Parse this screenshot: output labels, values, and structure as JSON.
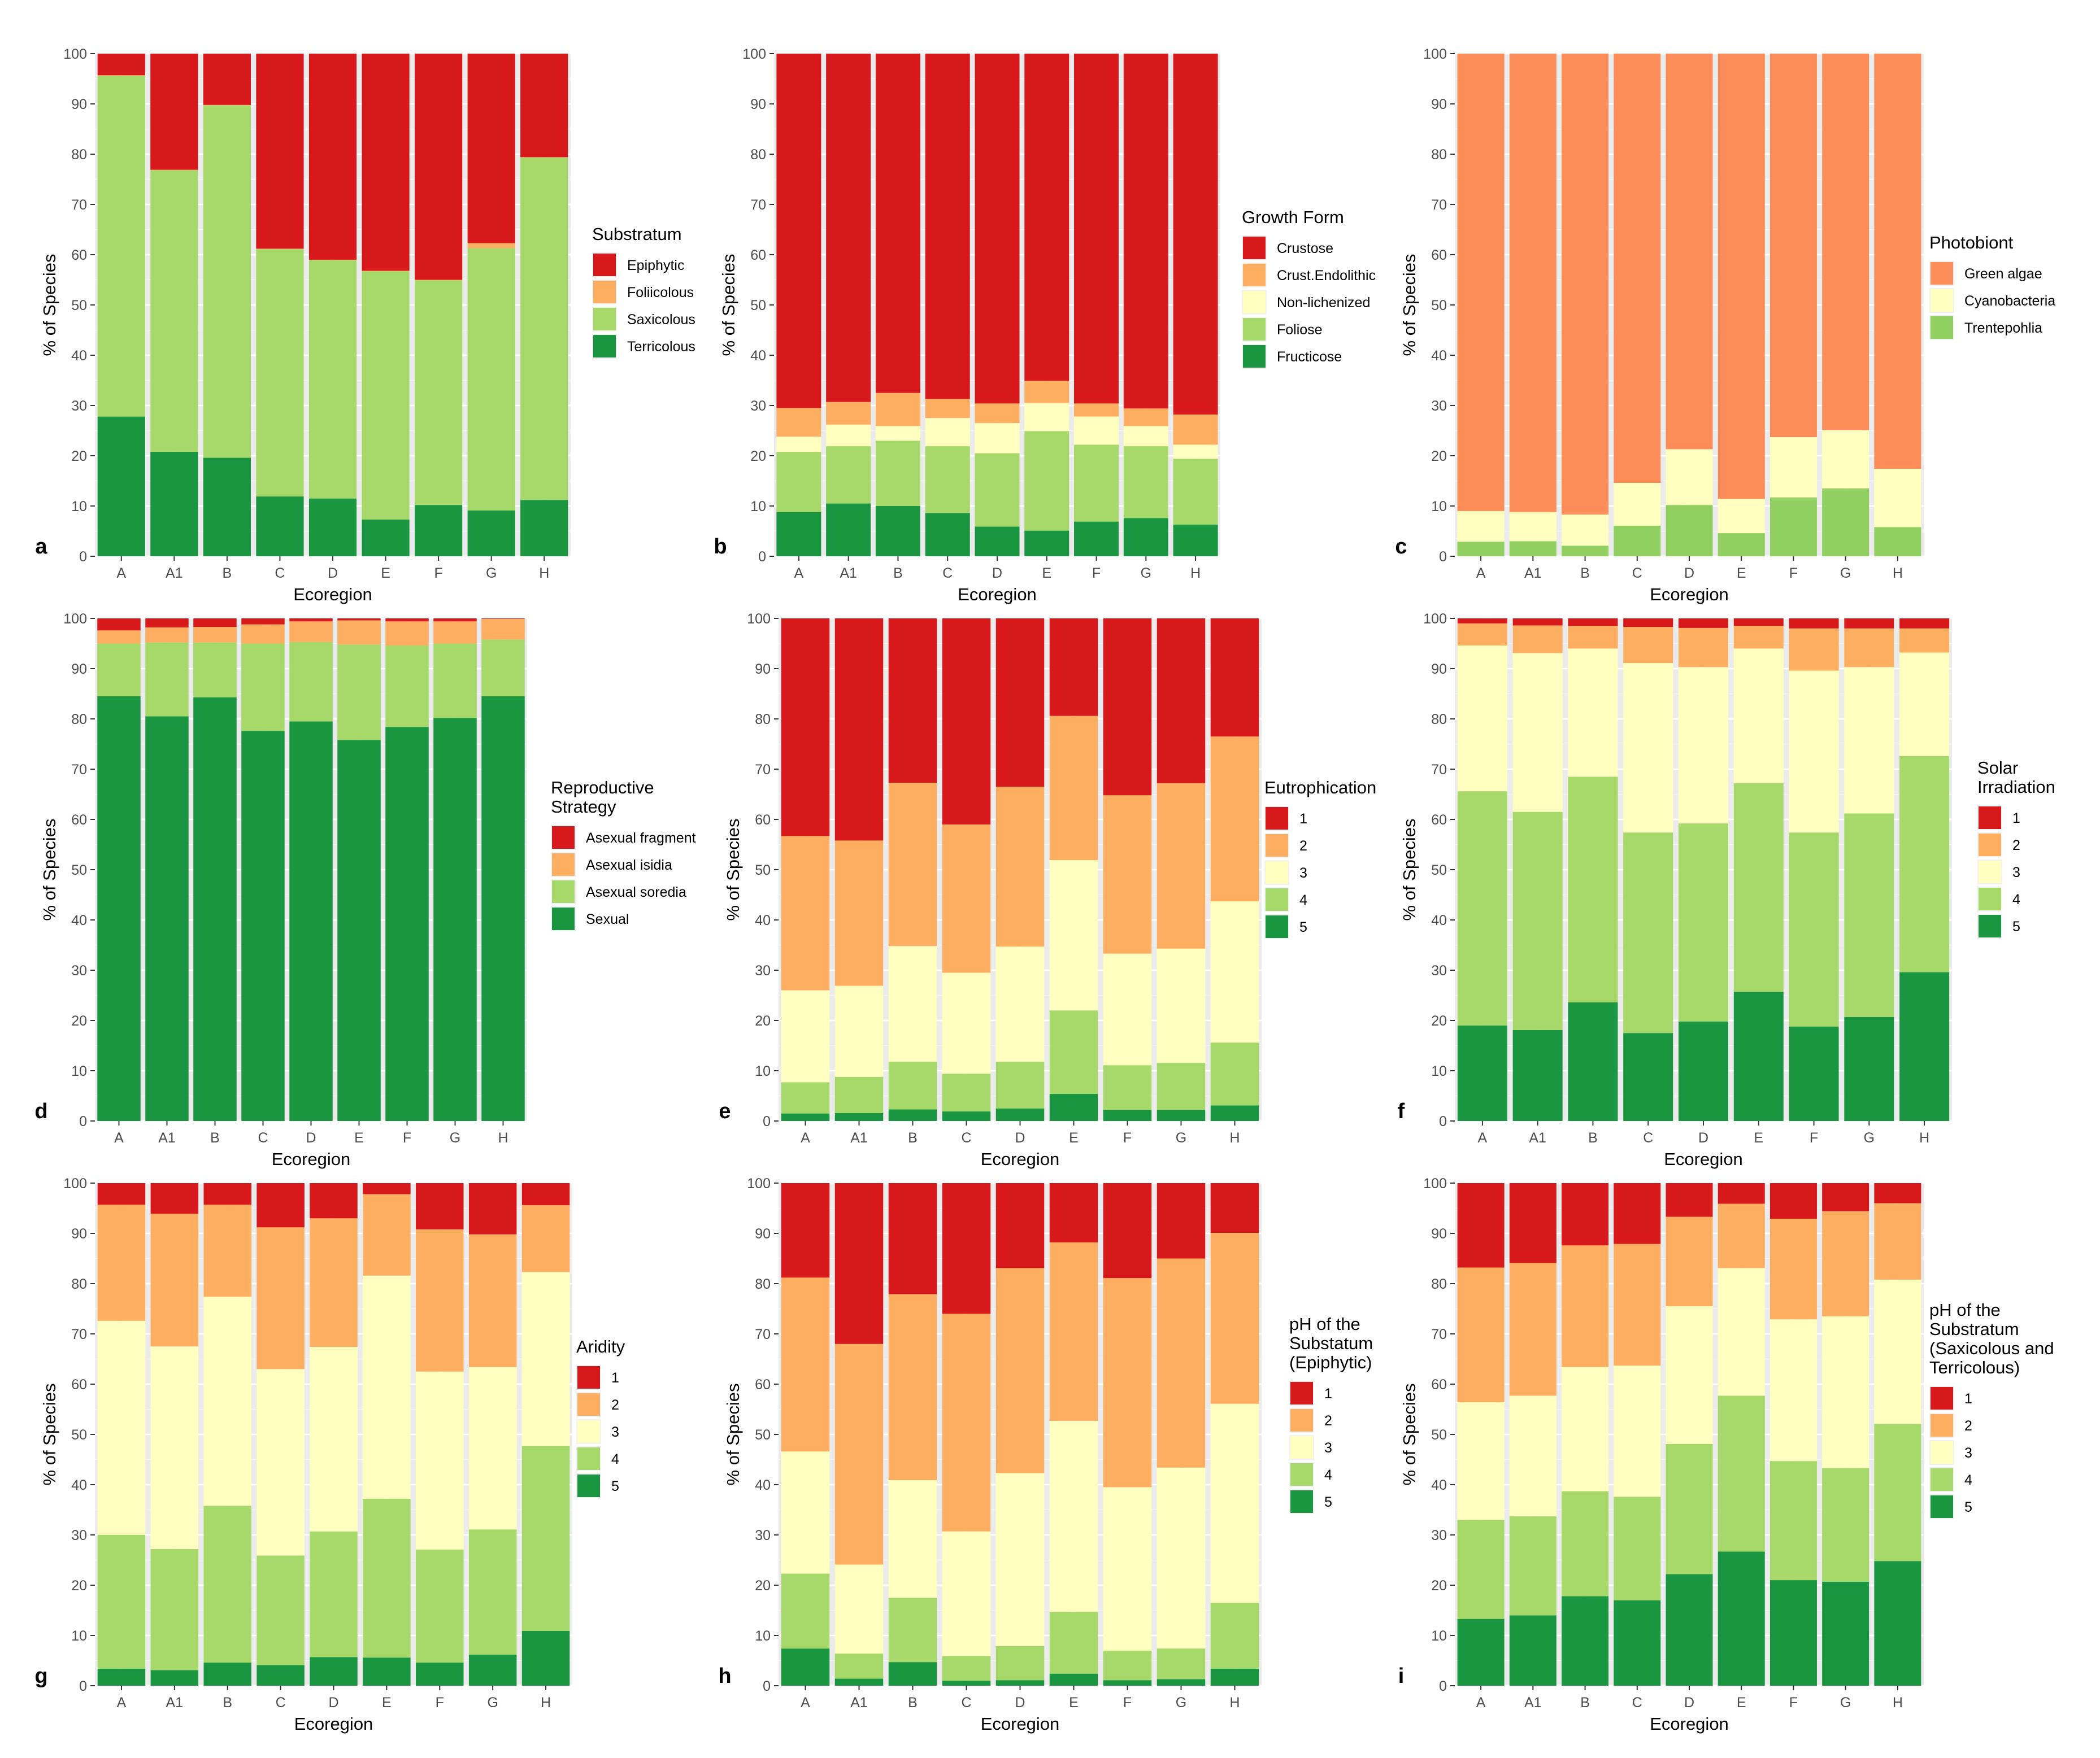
{
  "figure": {
    "categories": [
      "A",
      "A1",
      "B",
      "C",
      "D",
      "E",
      "F",
      "G",
      "H"
    ],
    "xlabel": "Ecoregion",
    "ylabel": "% of Species",
    "yticks": [
      0,
      10,
      20,
      30,
      40,
      50,
      60,
      70,
      80,
      90,
      100
    ],
    "ylim": [
      0,
      100
    ]
  },
  "chart_data": [
    {
      "panel": "a",
      "type": "bar",
      "stacked": true,
      "legend_title": "Substratum",
      "series": [
        {
          "name": "Epiphytic",
          "color": "#D7191C",
          "values": [
            4.3,
            23.1,
            10.2,
            38.8,
            41.0,
            43.2,
            45.0,
            37.7,
            20.6
          ]
        },
        {
          "name": "Foliicolous",
          "color": "#FDAE61",
          "values": [
            0.1,
            0.1,
            0.1,
            0.1,
            0.1,
            0.1,
            0.1,
            1.0,
            0.1
          ]
        },
        {
          "name": "Saxicolous",
          "color": "#A6D96A",
          "values": [
            67.8,
            56.0,
            70.1,
            49.2,
            47.4,
            49.4,
            44.7,
            52.2,
            68.1
          ]
        },
        {
          "name": "Terricolous",
          "color": "#1A9641",
          "values": [
            27.8,
            20.8,
            19.6,
            11.9,
            11.5,
            7.3,
            10.2,
            9.1,
            11.2
          ]
        }
      ]
    },
    {
      "panel": "b",
      "type": "bar",
      "stacked": true,
      "legend_title": "Growth Form",
      "series": [
        {
          "name": "Crustose",
          "color": "#D7191C",
          "values": [
            70.5,
            69.3,
            67.5,
            68.7,
            69.6,
            65.1,
            69.6,
            70.6,
            71.8
          ]
        },
        {
          "name": "Crust.Endolithic",
          "color": "#FDAE61",
          "values": [
            5.7,
            4.5,
            6.6,
            3.8,
            3.9,
            4.4,
            2.6,
            3.5,
            6.0
          ]
        },
        {
          "name": "Non-lichenized",
          "color": "#FFFFBF",
          "values": [
            3.0,
            4.3,
            2.9,
            5.6,
            6.0,
            5.6,
            5.6,
            4.0,
            2.8
          ]
        },
        {
          "name": "Foliose",
          "color": "#A6D96A",
          "values": [
            12.0,
            11.4,
            13.0,
            13.3,
            14.6,
            19.8,
            15.3,
            14.3,
            13.1
          ]
        },
        {
          "name": "Fructicose",
          "color": "#1A9641",
          "values": [
            8.8,
            10.5,
            10.0,
            8.6,
            5.9,
            5.1,
            6.9,
            7.6,
            6.3
          ]
        }
      ]
    },
    {
      "panel": "c",
      "type": "bar",
      "stacked": true,
      "legend_title": "Photobiont",
      "series": [
        {
          "name": "Green algae",
          "color": "#FC8D59",
          "values": [
            91.0,
            91.2,
            91.7,
            85.4,
            78.7,
            88.6,
            76.3,
            74.9,
            82.6
          ]
        },
        {
          "name": "Cyanobacteria",
          "color": "#FFFFBF",
          "values": [
            6.1,
            5.8,
            6.2,
            8.5,
            11.1,
            6.8,
            12.0,
            11.6,
            11.6
          ]
        },
        {
          "name": "Trentepohlia",
          "color": "#91CF60",
          "values": [
            2.9,
            3.0,
            2.1,
            6.1,
            10.2,
            4.6,
            11.7,
            13.5,
            5.8
          ]
        }
      ]
    },
    {
      "panel": "d",
      "type": "bar",
      "stacked": true,
      "legend_title": "Reproductive Strategy",
      "series": [
        {
          "name": "Asexual fragment",
          "color": "#D7191C",
          "values": [
            2.4,
            1.8,
            1.7,
            1.2,
            0.6,
            0.4,
            0.6,
            0.6,
            0.1
          ]
        },
        {
          "name": "Asexual isidia",
          "color": "#FDAE61",
          "values": [
            2.6,
            3.0,
            3.1,
            3.8,
            4.1,
            4.8,
            4.8,
            4.4,
            4.1
          ]
        },
        {
          "name": "Asexual soredia",
          "color": "#A6D96A",
          "values": [
            10.5,
            14.7,
            10.9,
            17.4,
            15.8,
            19.0,
            16.2,
            14.8,
            11.3
          ]
        },
        {
          "name": "Sexual",
          "color": "#1A9641",
          "values": [
            84.5,
            80.5,
            84.3,
            77.6,
            79.5,
            75.8,
            78.4,
            80.2,
            84.5
          ]
        }
      ]
    },
    {
      "panel": "e",
      "type": "bar",
      "stacked": true,
      "legend_title": "Eutrophication",
      "series": [
        {
          "name": "1",
          "color": "#D7191C",
          "values": [
            43.3,
            44.2,
            32.7,
            41.0,
            33.5,
            19.4,
            35.2,
            32.8,
            23.5
          ]
        },
        {
          "name": "2",
          "color": "#FDAE61",
          "values": [
            30.7,
            28.9,
            32.5,
            29.5,
            31.8,
            28.7,
            31.5,
            32.9,
            32.8
          ]
        },
        {
          "name": "3",
          "color": "#FFFFBF",
          "values": [
            18.3,
            18.1,
            23.0,
            20.1,
            22.9,
            29.9,
            22.2,
            22.7,
            28.1
          ]
        },
        {
          "name": "4",
          "color": "#A6D96A",
          "values": [
            6.2,
            7.2,
            9.5,
            7.5,
            9.3,
            16.6,
            8.9,
            9.4,
            12.5
          ]
        },
        {
          "name": "5",
          "color": "#1A9641",
          "values": [
            1.5,
            1.6,
            2.3,
            1.9,
            2.5,
            5.4,
            2.2,
            2.2,
            3.1
          ]
        }
      ]
    },
    {
      "panel": "f",
      "type": "bar",
      "stacked": true,
      "legend_title": "Solar Irradiation",
      "series": [
        {
          "name": "1",
          "color": "#D7191C",
          "values": [
            1.0,
            1.4,
            1.5,
            1.7,
            1.9,
            1.5,
            2.0,
            2.0,
            2.0
          ]
        },
        {
          "name": "2",
          "color": "#FDAE61",
          "values": [
            4.4,
            5.5,
            4.5,
            7.2,
            7.8,
            4.5,
            8.4,
            7.7,
            4.8
          ]
        },
        {
          "name": "3",
          "color": "#FFFFBF",
          "values": [
            29.0,
            31.6,
            25.5,
            33.7,
            31.1,
            26.8,
            32.2,
            29.1,
            20.6
          ]
        },
        {
          "name": "4",
          "color": "#A6D96A",
          "values": [
            46.6,
            43.4,
            44.9,
            39.9,
            39.4,
            41.5,
            38.6,
            40.5,
            43.0
          ]
        },
        {
          "name": "5",
          "color": "#1A9641",
          "values": [
            19.0,
            18.1,
            23.6,
            17.5,
            19.8,
            25.7,
            18.8,
            20.7,
            29.6
          ]
        }
      ]
    },
    {
      "panel": "g",
      "type": "bar",
      "stacked": true,
      "legend_title": "Aridity",
      "series": [
        {
          "name": "1",
          "color": "#D7191C",
          "values": [
            4.3,
            6.1,
            4.3,
            8.8,
            7.0,
            2.2,
            9.2,
            10.2,
            4.4
          ]
        },
        {
          "name": "2",
          "color": "#FDAE61",
          "values": [
            23.1,
            26.4,
            18.3,
            28.2,
            25.6,
            16.2,
            28.3,
            26.4,
            13.3
          ]
        },
        {
          "name": "3",
          "color": "#FFFFBF",
          "values": [
            42.6,
            40.3,
            41.6,
            37.1,
            36.7,
            44.4,
            35.4,
            32.3,
            34.6
          ]
        },
        {
          "name": "4",
          "color": "#A6D96A",
          "values": [
            26.6,
            24.1,
            31.2,
            21.8,
            25.0,
            31.6,
            22.5,
            24.9,
            36.8
          ]
        },
        {
          "name": "5",
          "color": "#1A9641",
          "values": [
            3.4,
            3.1,
            4.6,
            4.1,
            5.7,
            5.6,
            4.6,
            6.2,
            10.9
          ]
        }
      ]
    },
    {
      "panel": "h",
      "type": "bar",
      "stacked": true,
      "legend_title": "pH of the Substatum (Epiphytic)",
      "series": [
        {
          "name": "1",
          "color": "#D7191C",
          "values": [
            18.8,
            32.0,
            22.1,
            26.0,
            16.9,
            11.8,
            18.9,
            15.0,
            9.9
          ]
        },
        {
          "name": "2",
          "color": "#FDAE61",
          "values": [
            34.6,
            43.9,
            37.0,
            43.3,
            40.8,
            35.5,
            41.6,
            41.6,
            34.0
          ]
        },
        {
          "name": "3",
          "color": "#FFFFBF",
          "values": [
            24.3,
            17.7,
            23.4,
            24.8,
            34.4,
            38.0,
            32.5,
            36.0,
            39.6
          ]
        },
        {
          "name": "4",
          "color": "#A6D96A",
          "values": [
            14.9,
            5.0,
            12.8,
            4.9,
            6.8,
            12.3,
            5.9,
            6.1,
            13.1
          ]
        },
        {
          "name": "5",
          "color": "#1A9641",
          "values": [
            7.4,
            1.4,
            4.7,
            1.0,
            1.1,
            2.4,
            1.1,
            1.3,
            3.4
          ]
        }
      ]
    },
    {
      "panel": "i",
      "type": "bar",
      "stacked": true,
      "legend_title": "pH of the Substratum (Saxicolous and Terricolous)",
      "series": [
        {
          "name": "1",
          "color": "#D7191C",
          "values": [
            16.8,
            15.9,
            12.4,
            12.1,
            6.7,
            4.1,
            7.1,
            5.6,
            4.0
          ]
        },
        {
          "name": "2",
          "color": "#FDAE61",
          "values": [
            26.8,
            26.4,
            24.2,
            24.2,
            17.8,
            12.8,
            20.0,
            20.9,
            15.2
          ]
        },
        {
          "name": "3",
          "color": "#FFFFBF",
          "values": [
            23.4,
            24.0,
            24.7,
            26.1,
            27.4,
            25.4,
            28.2,
            30.2,
            28.7
          ]
        },
        {
          "name": "4",
          "color": "#A6D96A",
          "values": [
            19.7,
            19.7,
            20.9,
            20.6,
            25.9,
            31.0,
            23.7,
            22.6,
            27.3
          ]
        },
        {
          "name": "5",
          "color": "#1A9641",
          "values": [
            13.3,
            14.0,
            17.8,
            17.0,
            22.2,
            26.7,
            21.0,
            20.7,
            24.8
          ]
        }
      ]
    }
  ]
}
